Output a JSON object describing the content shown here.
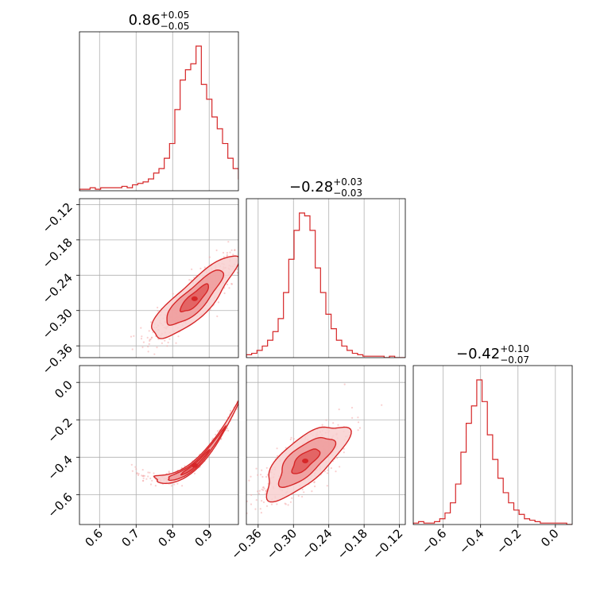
{
  "colors": {
    "accent": "#d62728",
    "grid": "#b0b0b0",
    "scatter": "#f4a9a9",
    "fill_outer": "#f8d0d0",
    "fill_mid": "#ef9a9a",
    "fill_inner": "#e05a5a"
  },
  "chart_data": {
    "type": "corner",
    "grid": true,
    "parameters": [
      {
        "index": 0,
        "title": {
          "median": "0.86",
          "plus": "+0.05",
          "minus": "−0.05"
        },
        "range": [
          0.545,
          0.98
        ],
        "ticks": [
          0.6,
          0.7,
          0.8,
          0.9
        ],
        "tick_labels": [
          "0.6",
          "0.7",
          "0.8",
          "0.9"
        ],
        "histogram": {
          "bin_start": 0.545,
          "bin_width": 0.0145,
          "counts": [
            0.01,
            0.01,
            0.02,
            0.01,
            0.02,
            0.02,
            0.02,
            0.02,
            0.03,
            0.02,
            0.04,
            0.05,
            0.06,
            0.08,
            0.12,
            0.15,
            0.22,
            0.32,
            0.55,
            0.75,
            0.82,
            0.86,
            0.98,
            0.72,
            0.62,
            0.5,
            0.42,
            0.32,
            0.22,
            0.15,
            0.08
          ]
        }
      },
      {
        "index": 1,
        "title": {
          "median": "−0.28",
          "plus": "+0.03",
          "minus": "−0.03"
        },
        "range": [
          -0.38,
          -0.11
        ],
        "ticks": [
          -0.36,
          -0.3,
          -0.24,
          -0.18,
          -0.12
        ],
        "tick_labels": [
          "−0.36",
          "−0.30",
          "−0.24",
          "−0.18",
          "−0.12"
        ],
        "histogram": {
          "bin_start": -0.38,
          "bin_width": 0.009,
          "counts": [
            0.02,
            0.03,
            0.05,
            0.08,
            0.12,
            0.18,
            0.27,
            0.45,
            0.68,
            0.88,
            1.0,
            0.98,
            0.88,
            0.62,
            0.45,
            0.3,
            0.2,
            0.12,
            0.08,
            0.05,
            0.03,
            0.02,
            0.01,
            0.01,
            0.01,
            0.01,
            0.0,
            0.01,
            0.0,
            0.0
          ]
        }
      },
      {
        "index": 2,
        "title": {
          "median": "−0.42",
          "plus": "+0.10",
          "minus": "−0.07"
        },
        "range": [
          -0.76,
          0.09
        ],
        "ticks": [
          -0.6,
          -0.4,
          -0.2,
          0.0
        ],
        "tick_labels": [
          "−0.6",
          "−0.4",
          "−0.2",
          "0.0"
        ],
        "histogram": {
          "bin_start": -0.76,
          "bin_width": 0.0283,
          "counts": [
            0.01,
            0.02,
            0.01,
            0.01,
            0.02,
            0.04,
            0.08,
            0.15,
            0.28,
            0.5,
            0.7,
            0.82,
            1.0,
            0.85,
            0.62,
            0.45,
            0.32,
            0.22,
            0.15,
            0.1,
            0.07,
            0.04,
            0.03,
            0.02,
            0.01,
            0.01,
            0.01,
            0.01,
            0.01,
            0.0
          ]
        }
      }
    ],
    "pairs": [
      {
        "x_index": 0,
        "y_index": 1,
        "correlation": 0.85,
        "center": [
          0.86,
          -0.28
        ],
        "spread": [
          0.05,
          0.03
        ],
        "curve": 0.0
      },
      {
        "x_index": 0,
        "y_index": 2,
        "correlation": 0.99,
        "center": [
          0.86,
          -0.42
        ],
        "spread": [
          0.05,
          0.085
        ],
        "curve": 0.55
      },
      {
        "x_index": 1,
        "y_index": 2,
        "correlation": 0.72,
        "center": [
          -0.28,
          -0.42
        ],
        "spread": [
          0.03,
          0.085
        ],
        "curve": 0.0
      }
    ],
    "contour_levels_sigma": [
      0.5,
      1.0,
      1.5
    ]
  }
}
